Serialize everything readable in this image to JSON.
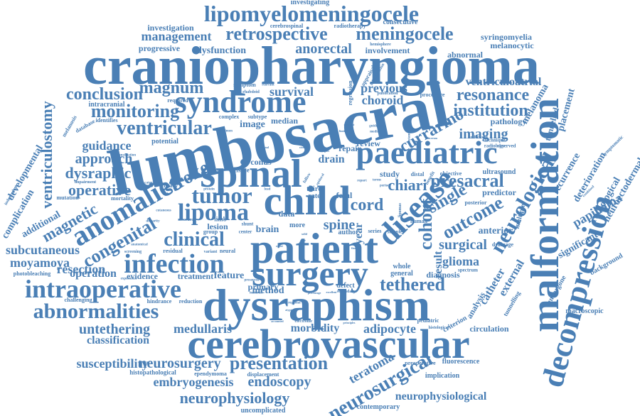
{
  "color": "#4a7fb5",
  "words": {
    "craniopharyngioma": "craniopharyngioma",
    "lumbosacral": "lumbosacral",
    "dysraphism": "dysraphism",
    "cerebrovascular": "cerebrovascular",
    "patient": "patient",
    "spinal": "spinal",
    "child": "child",
    "surgery": "surgery",
    "malformation": "malformation",
    "paediatric": "paediatric",
    "syndrome": "syndrome",
    "intraoperative": "intraoperative",
    "decompression": "decompression",
    "lipomyelomeningocele": "lipomyelomeningocele",
    "retrospective": "retrospective",
    "meningocele": "meningocele",
    "infection": "infection",
    "abnormalities": "abnormalities",
    "anomalies": "anomalies",
    "disease": "disease",
    "congenital": "congenital",
    "lipoma": "lipoma",
    "tumor": "tumor",
    "neurological": "neurological",
    "presentation": "presentation",
    "neurosurgical": "neurosurgical",
    "neurophysiology": "neurophysiology",
    "ventricular": "ventricular",
    "monitoring": "monitoring",
    "conclusion": "conclusion",
    "magnum": "magnum",
    "management": "management",
    "anorectal": "anorectal",
    "institution": "institution",
    "resonance": "resonance",
    "ventriculoatrial": "ventriculoatrial",
    "imaging": "imaging",
    "currarino": "currarino",
    "choroid": "choroid",
    "previous": "previous",
    "survival": "survival",
    "presacral": "presacral",
    "chiari": "chiari",
    "cord": "cord",
    "single": "single",
    "cohort": "cohort",
    "outcome": "outcome",
    "tethered": "tethered",
    "surgical": "surgical",
    "glioma": "glioma",
    "clinical": "clinical",
    "stroke": "stroke",
    "operative": "operative",
    "dysraphic": "dysraphic",
    "approach": "approach",
    "guidance": "guidance",
    "magnetic": "magnetic",
    "subcutaneous": "subcutaneous",
    "moyamoya": "moyamoya",
    "resection": "resection",
    "operation": "operation",
    "untethering": "untethering",
    "classification": "classification",
    "susceptibility": "susceptibility",
    "neurosurgery": "neurosurgery",
    "embryogenesis": "embryogenesis",
    "endoscopy": "endoscopy",
    "neurophysiological": "neurophysiological",
    "medullaris": "medullaris",
    "morbidity": "morbidity",
    "adipocyte": "adipocyte",
    "teratoma": "teratoma",
    "method": "method",
    "feature": "feature",
    "primary": "primary",
    "treatment": "treatment",
    "evidence": "evidence",
    "spine": "spine",
    "drain": "drain",
    "repair": "repair",
    "review": "review",
    "study": "study",
    "brain": "brain",
    "lesion": "lesion",
    "year": "year",
    "result": "result",
    "anterior": "anterior",
    "diagnosis": "diagnosis",
    "catheter": "catheter",
    "analysis": "analysis",
    "external": "external",
    "ventriculostomy": "ventriculostomy",
    "developmental": "developmental",
    "additional": "additional",
    "complication": "complication",
    "significant": "significant",
    "papilloma": "papilloma",
    "radiological": "radiological",
    "neuroectodermal": "neuroectodermal",
    "deterioration": "deterioration",
    "recurrence": "recurrence",
    "melanoma": "melanoma",
    "placement": "placement",
    "tunnelled": "tunnelled",
    "pathology": "pathology",
    "syringomyelia": "syringomyelia",
    "melanocytic": "melanocytic",
    "abnormal": "abnormal",
    "involvement": "involvement",
    "progressive": "progressive",
    "dysfunction": "dysfunction",
    "investigation": "investigation",
    "investigating": "investigating",
    "consecutive": "consecutive",
    "cerebrospinal": "cerebrospinal",
    "radiotherapy": "radiotherapy",
    "intracranial": "intracranial",
    "required": "required",
    "image": "image",
    "median": "median",
    "subtype": "subtype",
    "potential": "potential",
    "conus": "conus",
    "tissue": "tissue",
    "efficacy": "efficacy",
    "fetal": "fetal",
    "third": "third",
    "rate": "rate",
    "data": "data",
    "more": "more",
    "author": "author",
    "defect": "defect",
    "whole": "whole",
    "general": "general",
    "predictor": "predictor",
    "drainage": "drainage",
    "ultrasound": "ultrasound",
    "objective": "objective",
    "multiple": "multiple",
    "undergone": "undergone",
    "background": "background",
    "macroscopic": "macroscopic",
    "fluorescence": "fluorescence",
    "preoperative": "preoperative",
    "implication": "implication",
    "contemporary": "contemporary",
    "uncomplicated": "uncomplicated",
    "histopathological": "histopathological",
    "ependymoma": "ependymoma",
    "displacement": "displacement",
    "reduction": "reduction",
    "hindrance": "hindrance",
    "challenging": "challenging",
    "photobleaching": "photobleaching",
    "residual": "residual",
    "mutation": "mutation",
    "mortality": "mortality",
    "impairment": "impairment",
    "melanosis": "melanosis",
    "database": "database",
    "identifies": "identifies",
    "circulation": "circulation",
    "criterion": "criterion",
    "tunnelling": "tunnelling",
    "spectrum": "spectrum",
    "pediatric": "pediatric",
    "neural": "neural",
    "group": "group",
    "center": "center",
    "shunt": "shunt",
    "series": "series",
    "sample": "sample",
    "human": "human",
    "posterior": "posterior",
    "benefit": "benefit",
    "technique": "technique",
    "radiology": "radiology",
    "publication": "publication",
    "procedure": "procedure",
    "observed": "observed",
    "complex": "complex",
    "symptom": "symptom",
    "regression": "regression",
    "hemisphere": "hemisphere",
    "appraisal": "appraisal",
    "inflammation": "inflammation",
    "rhabdoid": "rhabdoid",
    "relevant": "relevant",
    "screening": "screening",
    "variant": "variant",
    "secondary": "secondary",
    "distal": "distal",
    "experience": "experience",
    "independent": "independent",
    "limb": "limb",
    "measure": "measure",
    "closure": "closure",
    "categories": "categories",
    "protein": "protein",
    "cutaneous": "cutaneous",
    "anatomical": "anatomical",
    "histological": "histological",
    "follow": "follow",
    "epidural": "epidural",
    "combined": "combined",
    "symptomatic": "symptomatic",
    "underwent": "underwent",
    "lipomas": "lipomas",
    "electronic": "electronic",
    "material": "material",
    "regional": "regional",
    "preserved": "preserved",
    "percentage": "percentage",
    "excellent": "excellent",
    "principles": "principles",
    "accounted": "accounted",
    "atypical": "atypical",
    "guideline": "guideline",
    "median_sm": "median",
    "eloquent": "eloquent",
    "limited": "limited",
    "rights": "rights",
    "instance": "instance",
    "lacerum": "lacerum",
    "orbital": "orbital",
    "normal": "normal",
    "stomach": "stomach",
    "specimen": "specimen",
    "constipation": "constipation",
    "disparity": "disparity",
    "lead": "lead",
    "terms": "terms",
    "period": "period",
    "report": "report",
    "outlet": "outlet",
    "solid": "solid",
    "final": "final",
    "pose": "pose",
    "fibers": "fibers"
  }
}
